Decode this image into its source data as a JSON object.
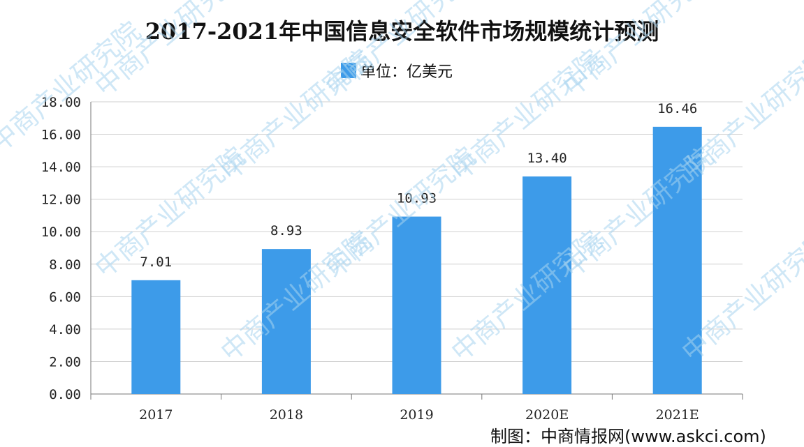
{
  "chart_data": {
    "type": "bar",
    "title": "2017-2021年中国信息安全软件市场规模统计预测",
    "legend": "单位：亿美元",
    "categories": [
      "2017",
      "2018",
      "2019",
      "2020E",
      "2021E"
    ],
    "values": [
      7.01,
      8.93,
      10.93,
      13.4,
      16.46
    ],
    "data_labels": [
      "7.01",
      "8.93",
      "10.93",
      "13.40",
      "16.46"
    ],
    "ylim": [
      0,
      18
    ],
    "yticks": [
      "0.00",
      "2.00",
      "4.00",
      "6.00",
      "8.00",
      "10.00",
      "12.00",
      "14.00",
      "16.00",
      "18.00"
    ],
    "grid": true,
    "bar_color": "#3d9be9"
  },
  "watermark": "中商产业研究院",
  "source": "制图：中商情报网(www.askci.com)"
}
